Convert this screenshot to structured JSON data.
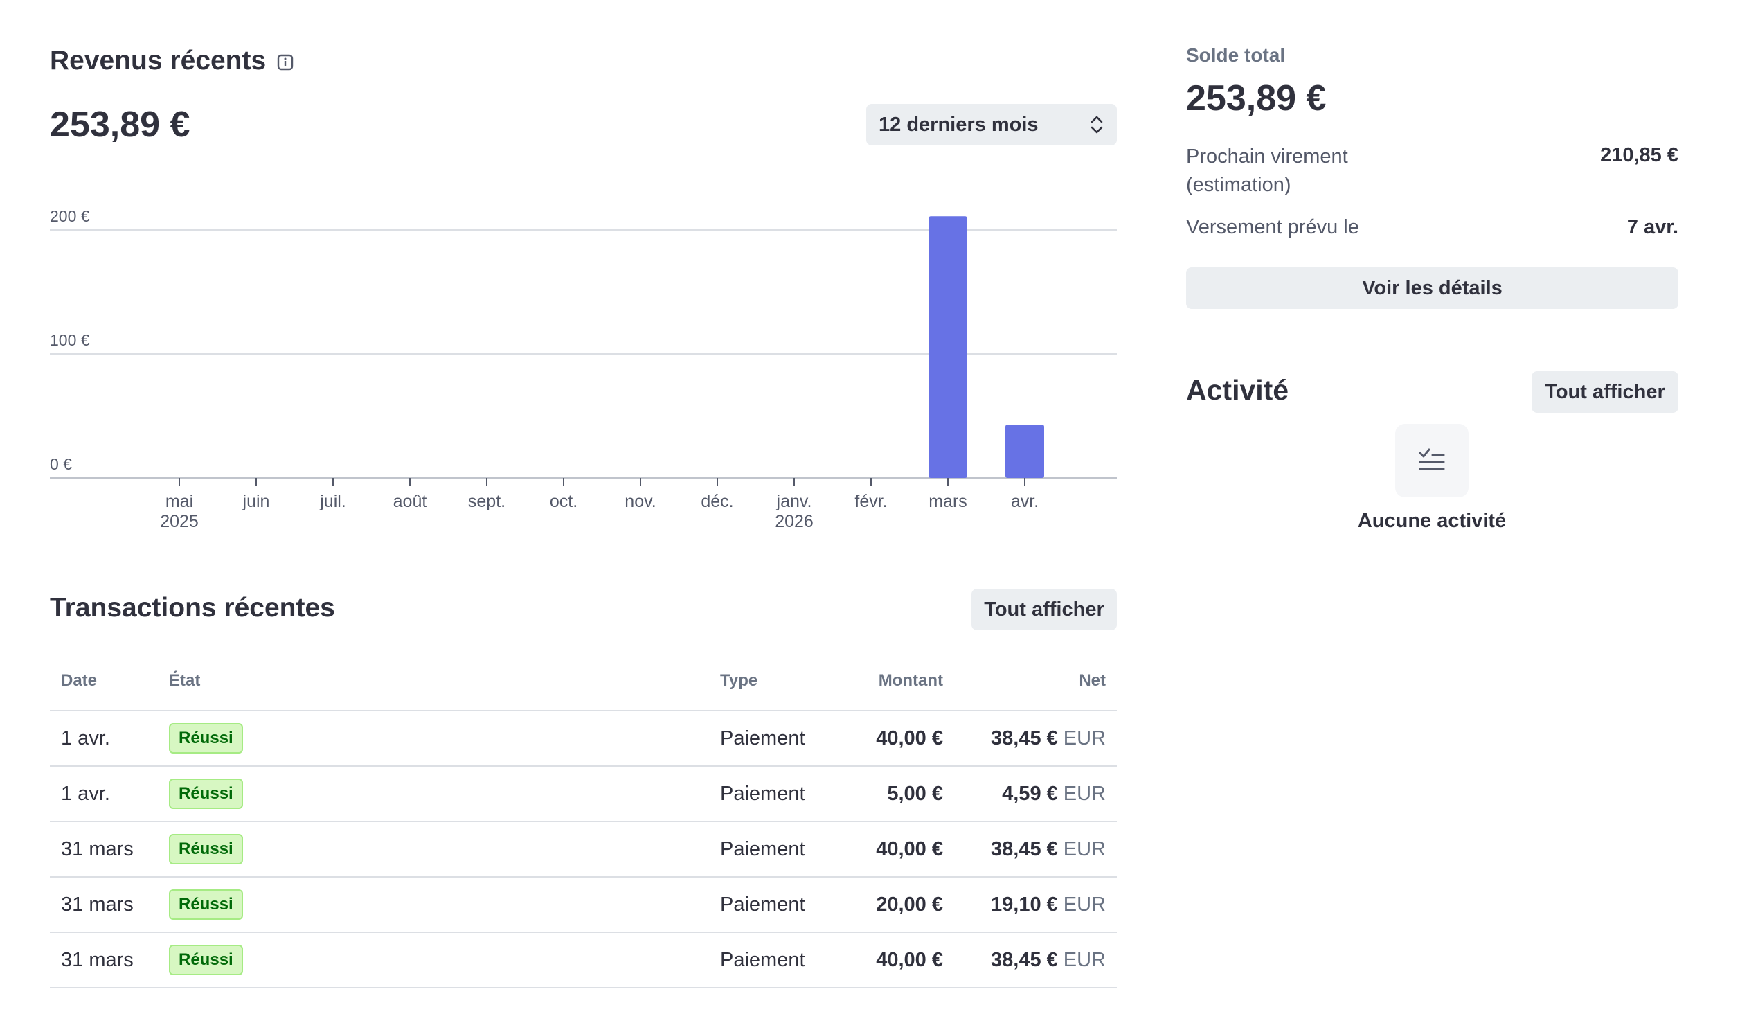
{
  "revenue": {
    "title": "Revenus récents",
    "amount": "253,89 €",
    "period_selected": "12 derniers mois"
  },
  "chart_data": {
    "type": "bar",
    "title": "",
    "xlabel": "",
    "ylabel": "",
    "categories": [
      "mai 2025",
      "juin",
      "juil.",
      "août",
      "sept.",
      "oct.",
      "nov.",
      "déc.",
      "janv. 2026",
      "févr.",
      "mars",
      "avr."
    ],
    "tick_lines": [
      [
        "mai",
        "2025"
      ],
      [
        "juin"
      ],
      [
        "juil."
      ],
      [
        "août"
      ],
      [
        "sept."
      ],
      [
        "oct."
      ],
      [
        "nov."
      ],
      [
        "déc."
      ],
      [
        "janv.",
        "2026"
      ],
      [
        "févr."
      ],
      [
        "mars"
      ],
      [
        "avr."
      ]
    ],
    "values": [
      0,
      0,
      0,
      0,
      0,
      0,
      0,
      0,
      0,
      0,
      211,
      43
    ],
    "ylim": [
      0,
      200
    ],
    "y_ticks": [
      {
        "value": 200,
        "label": "200 €"
      },
      {
        "value": 100,
        "label": "100 €"
      },
      {
        "value": 0,
        "label": "0 €"
      }
    ],
    "grid": true,
    "color": "#6772e5"
  },
  "transactions": {
    "title": "Transactions récentes",
    "view_all": "Tout afficher",
    "columns": [
      "Date",
      "État",
      "Type",
      "Montant",
      "Net"
    ],
    "rows": [
      {
        "date": "1 avr.",
        "state": "Réussi",
        "type": "Paiement",
        "amount": "40,00 €",
        "net": "38,45 €",
        "currency": "EUR"
      },
      {
        "date": "1 avr.",
        "state": "Réussi",
        "type": "Paiement",
        "amount": "5,00 €",
        "net": "4,59 €",
        "currency": "EUR"
      },
      {
        "date": "31 mars",
        "state": "Réussi",
        "type": "Paiement",
        "amount": "40,00 €",
        "net": "38,45 €",
        "currency": "EUR"
      },
      {
        "date": "31 mars",
        "state": "Réussi",
        "type": "Paiement",
        "amount": "20,00 €",
        "net": "19,10 €",
        "currency": "EUR"
      },
      {
        "date": "31 mars",
        "state": "Réussi",
        "type": "Paiement",
        "amount": "40,00 €",
        "net": "38,45 €",
        "currency": "EUR"
      }
    ]
  },
  "balance": {
    "label": "Solde total",
    "amount": "253,89 €",
    "next_transfer_label": "Prochain virement (estimation)",
    "next_transfer_value": "210,85 €",
    "payout_date_label": "Versement prévu le",
    "payout_date_value": "7 avr.",
    "details_button": "Voir les détails"
  },
  "activity": {
    "title": "Activité",
    "view_all": "Tout afficher",
    "empty_text": "Aucune activité",
    "icon": "checklist-icon"
  },
  "colors": {
    "bar": "#6772e5",
    "badge_bg": "#d7f7c2",
    "badge_text": "#006908",
    "button_bg": "#ebeef1"
  }
}
